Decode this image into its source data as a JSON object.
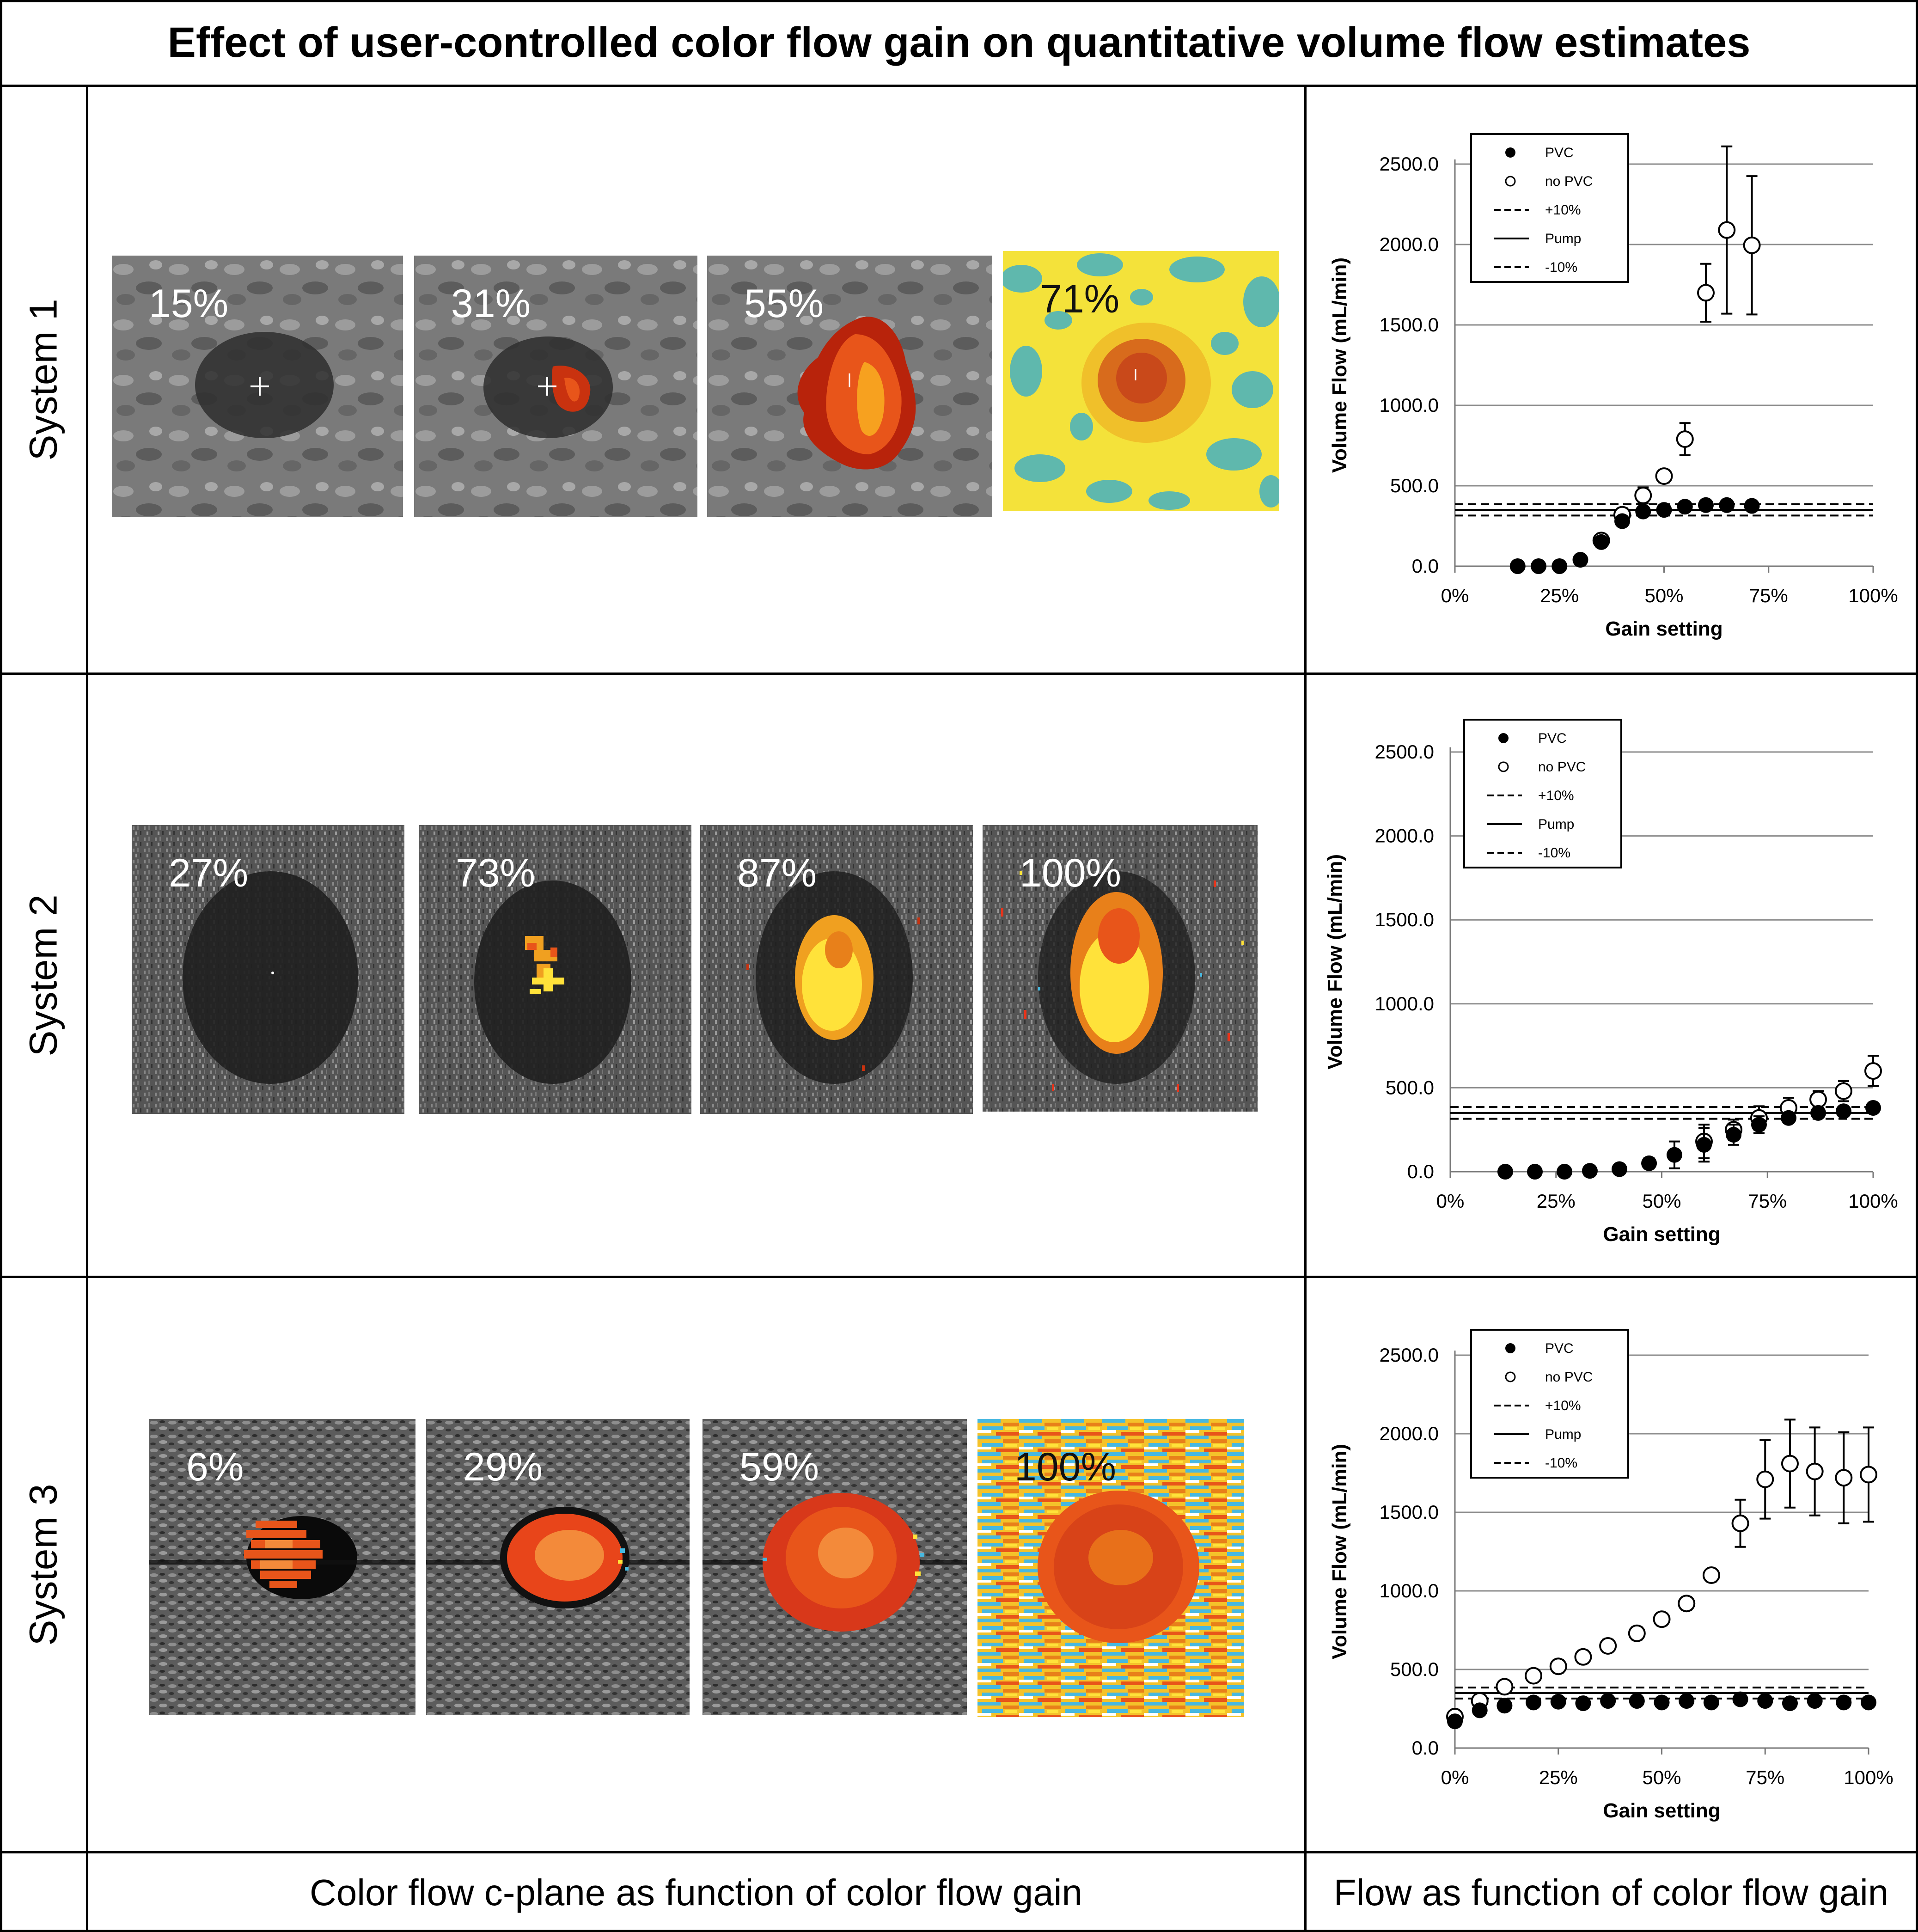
{
  "title": "Effect of user-controlled color flow gain on quantitative volume flow estimates",
  "footer": {
    "left": "Color flow c-plane as function of color flow gain",
    "right": "Flow as function of color flow gain"
  },
  "systems": [
    {
      "label": "System 1",
      "panels": [
        "15%",
        "31%",
        "55%",
        "71%"
      ]
    },
    {
      "label": "System 2",
      "panels": [
        "27%",
        "73%",
        "87%",
        "100%"
      ]
    },
    {
      "label": "System 3",
      "panels": [
        "6%",
        "29%",
        "59%",
        "100%"
      ]
    }
  ],
  "colors": {
    "pvc": "#000000",
    "no_pvc": "#ffffff",
    "grid": "#8c8c8c",
    "flow_hot": "#e8551a",
    "flow_yellow": "#ffe23a",
    "flow_red": "#b8230b",
    "artifact_teal": "#5fb8ad",
    "artifact_blue": "#47b8e0"
  },
  "chart_data": [
    {
      "type": "scatter",
      "xlabel": "Gain setting",
      "ylabel": "Volume Flow (mL/min)",
      "xticks": [
        "0%",
        "25%",
        "50%",
        "75%",
        "100%"
      ],
      "yticks": [
        "0.0",
        "500.0",
        "1000.0",
        "1500.0",
        "2000.0",
        "2500.0"
      ],
      "xlim": [
        0,
        1
      ],
      "ylim": [
        0,
        2500
      ],
      "grid": true,
      "legend": [
        "PVC",
        "no PVC",
        "+10%",
        "Pump",
        "-10%"
      ],
      "reference_lines": {
        "plus10": 385,
        "pump": 350,
        "minus10": 315
      },
      "series": [
        {
          "name": "PVC",
          "marker": "filled",
          "x": [
            0.15,
            0.2,
            0.25,
            0.3,
            0.35,
            0.4,
            0.45,
            0.5,
            0.55,
            0.6,
            0.65,
            0.71
          ],
          "y": [
            0,
            0,
            0,
            40,
            150,
            280,
            340,
            350,
            370,
            380,
            380,
            375
          ],
          "err": [
            0,
            0,
            0,
            0,
            30,
            30,
            20,
            20,
            20,
            25,
            20,
            15
          ]
        },
        {
          "name": "no PVC",
          "marker": "open",
          "x": [
            0.35,
            0.4,
            0.45,
            0.5,
            0.55,
            0.6,
            0.65,
            0.71
          ],
          "y": [
            160,
            320,
            440,
            560,
            790,
            1700,
            2090,
            1995
          ],
          "err": [
            20,
            40,
            50,
            40,
            100,
            180,
            520,
            430
          ]
        }
      ]
    },
    {
      "type": "scatter",
      "xlabel": "Gain setting",
      "ylabel": "Volume Flow (mL/min)",
      "xticks": [
        "0%",
        "25%",
        "50%",
        "75%",
        "100%"
      ],
      "yticks": [
        "0.0",
        "500.0",
        "1000.0",
        "1500.0",
        "2000.0",
        "2500.0"
      ],
      "xlim": [
        0,
        1
      ],
      "ylim": [
        0,
        2500
      ],
      "grid": true,
      "legend": [
        "PVC",
        "no PVC",
        "+10%",
        "Pump",
        "-10%"
      ],
      "reference_lines": {
        "plus10": 385,
        "pump": 350,
        "minus10": 315
      },
      "series": [
        {
          "name": "PVC",
          "marker": "filled",
          "x": [
            0.13,
            0.2,
            0.27,
            0.33,
            0.4,
            0.47,
            0.53,
            0.6,
            0.67,
            0.73,
            0.8,
            0.87,
            0.93,
            1.0
          ],
          "y": [
            0,
            0,
            0,
            5,
            15,
            50,
            100,
            160,
            220,
            280,
            320,
            350,
            360,
            380
          ],
          "err": [
            0,
            0,
            0,
            0,
            10,
            30,
            80,
            100,
            60,
            50,
            30,
            20,
            20,
            20
          ]
        },
        {
          "name": "no PVC",
          "marker": "open",
          "x": [
            0.6,
            0.67,
            0.73,
            0.8,
            0.87,
            0.93,
            1.0
          ],
          "y": [
            180,
            250,
            320,
            380,
            430,
            480,
            600
          ],
          "err": [
            100,
            60,
            70,
            60,
            50,
            60,
            90
          ]
        }
      ]
    },
    {
      "type": "scatter",
      "xlabel": "Gain setting",
      "ylabel": "Volume Flow (mL/min)",
      "xticks": [
        "0%",
        "25%",
        "50%",
        "75%",
        "100%"
      ],
      "yticks": [
        "0.0",
        "500.0",
        "1000.0",
        "1500.0",
        "2000.0",
        "2500.0"
      ],
      "xlim": [
        0,
        1
      ],
      "ylim": [
        0,
        2500
      ],
      "grid": true,
      "legend": [
        "PVC",
        "no PVC",
        "+10%",
        "Pump",
        "-10%"
      ],
      "reference_lines": {
        "plus10": 385,
        "pump": 350,
        "minus10": 315
      },
      "series": [
        {
          "name": "PVC",
          "marker": "filled",
          "x": [
            0.0,
            0.06,
            0.12,
            0.19,
            0.25,
            0.31,
            0.37,
            0.44,
            0.5,
            0.56,
            0.62,
            0.69,
            0.75,
            0.81,
            0.87,
            0.94,
            1.0
          ],
          "y": [
            170,
            240,
            270,
            290,
            295,
            285,
            300,
            300,
            290,
            300,
            290,
            310,
            300,
            285,
            300,
            290,
            290
          ],
          "err": [
            20,
            15,
            15,
            10,
            10,
            10,
            10,
            10,
            10,
            10,
            10,
            10,
            10,
            10,
            10,
            10,
            10
          ]
        },
        {
          "name": "no PVC",
          "marker": "open",
          "x": [
            0.0,
            0.06,
            0.12,
            0.19,
            0.25,
            0.31,
            0.37,
            0.44,
            0.5,
            0.56,
            0.62,
            0.69,
            0.75,
            0.81,
            0.87,
            0.94,
            1.0
          ],
          "y": [
            200,
            300,
            390,
            460,
            520,
            580,
            650,
            730,
            820,
            920,
            1100,
            1430,
            1710,
            1810,
            1760,
            1720,
            1740
          ],
          "err": [
            30,
            30,
            30,
            30,
            40,
            40,
            40,
            40,
            40,
            40,
            40,
            150,
            250,
            280,
            280,
            290,
            300
          ]
        }
      ]
    }
  ]
}
